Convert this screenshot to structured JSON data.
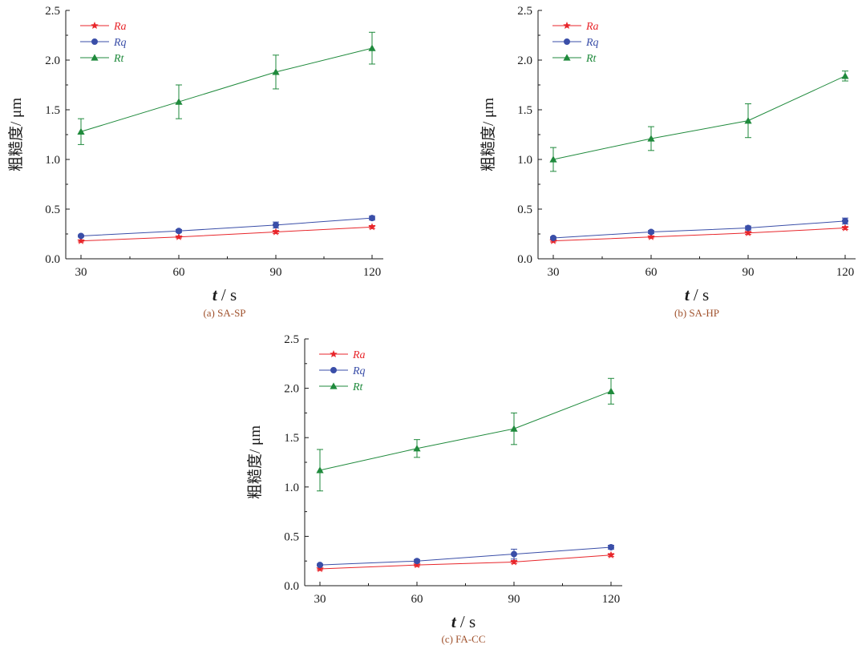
{
  "colors": {
    "Ra": "#e8262b",
    "Rq": "#3a4ea8",
    "Rt": "#1f8a3c",
    "caption": "#a0522d",
    "axis": "#1a1a1a"
  },
  "chart_data": [
    {
      "type": "line",
      "caption": "(a) SA-SP",
      "xlabel_var": "t",
      "xlabel_unit": " / s",
      "ylabel": "粗糙度/ μm",
      "categories": [
        30,
        60,
        90,
        120
      ],
      "ylim": [
        0,
        2.5
      ],
      "yticks": [
        "0.0",
        "0.5",
        "1.0",
        "1.5",
        "2.0",
        "2.5"
      ],
      "series": [
        {
          "name": "Ra",
          "marker": "star",
          "values": [
            0.18,
            0.22,
            0.27,
            0.32
          ],
          "errors": [
            0.01,
            0.01,
            0.015,
            0.015
          ]
        },
        {
          "name": "Rq",
          "marker": "circle",
          "values": [
            0.23,
            0.28,
            0.34,
            0.41
          ],
          "errors": [
            0.01,
            0.015,
            0.03,
            0.02
          ]
        },
        {
          "name": "Rt",
          "marker": "triangle",
          "values": [
            1.28,
            1.58,
            1.88,
            2.12
          ],
          "errors": [
            0.13,
            0.17,
            0.17,
            0.16
          ]
        }
      ]
    },
    {
      "type": "line",
      "caption": "(b) SA-HP",
      "xlabel_var": "t",
      "xlabel_unit": " / s",
      "ylabel": "粗糙度/ μm",
      "categories": [
        30,
        60,
        90,
        120
      ],
      "ylim": [
        0,
        2.5
      ],
      "yticks": [
        "0.0",
        "0.5",
        "1.0",
        "1.5",
        "2.0",
        "2.5"
      ],
      "series": [
        {
          "name": "Ra",
          "marker": "star",
          "values": [
            0.18,
            0.22,
            0.26,
            0.31
          ],
          "errors": [
            0.01,
            0.01,
            0.015,
            0.015
          ]
        },
        {
          "name": "Rq",
          "marker": "circle",
          "values": [
            0.21,
            0.27,
            0.31,
            0.38
          ],
          "errors": [
            0.01,
            0.015,
            0.02,
            0.03
          ]
        },
        {
          "name": "Rt",
          "marker": "triangle",
          "values": [
            1.0,
            1.21,
            1.39,
            1.84
          ],
          "errors": [
            0.12,
            0.12,
            0.17,
            0.05
          ]
        }
      ]
    },
    {
      "type": "line",
      "caption": "(c) FA-CC",
      "xlabel_var": "t",
      "xlabel_unit": " / s",
      "ylabel": "粗糙度/ μm",
      "categories": [
        30,
        60,
        90,
        120
      ],
      "ylim": [
        0,
        2.5
      ],
      "yticks": [
        "0.0",
        "0.5",
        "1.0",
        "1.5",
        "2.0",
        "2.5"
      ],
      "series": [
        {
          "name": "Ra",
          "marker": "star",
          "values": [
            0.17,
            0.21,
            0.24,
            0.31
          ],
          "errors": [
            0.01,
            0.01,
            0.015,
            0.015
          ]
        },
        {
          "name": "Rq",
          "marker": "circle",
          "values": [
            0.21,
            0.25,
            0.32,
            0.39
          ],
          "errors": [
            0.01,
            0.015,
            0.05,
            0.02
          ]
        },
        {
          "name": "Rt",
          "marker": "triangle",
          "values": [
            1.17,
            1.39,
            1.59,
            1.97
          ],
          "errors": [
            0.21,
            0.09,
            0.16,
            0.13
          ]
        }
      ]
    }
  ]
}
